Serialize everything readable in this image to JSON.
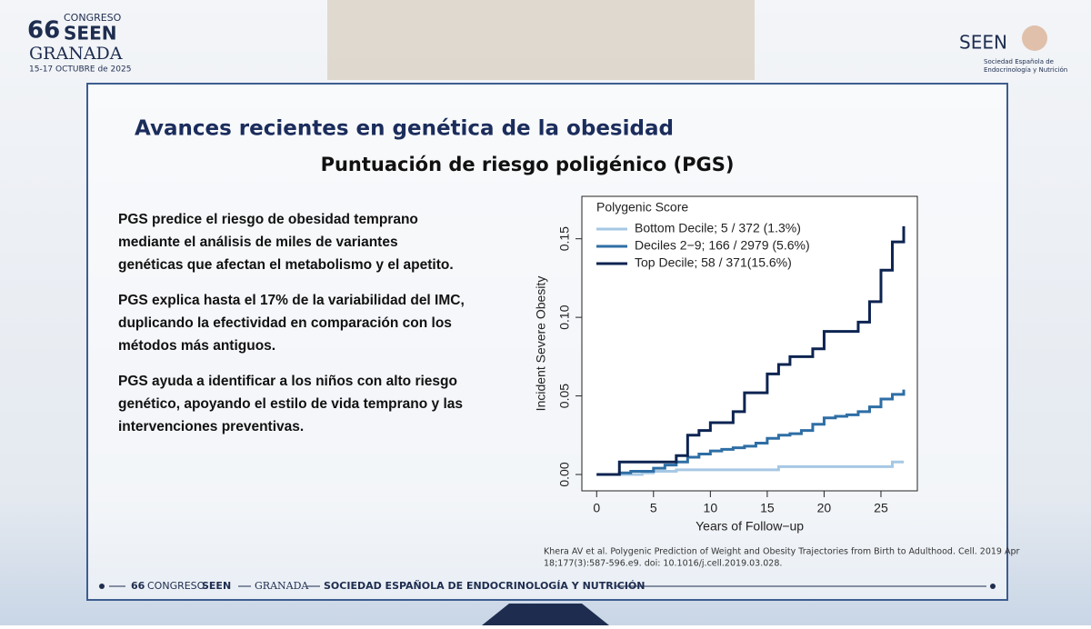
{
  "header": {
    "logo_number": "66",
    "logo_top": "CONGRESO",
    "logo_name": "SEEN",
    "logo_city": "GRANADA",
    "logo_dates": "15-17 OCTUBRE de 2025",
    "brand": "SEEN",
    "brand_sub_1": "Sociedad Española de",
    "brand_sub_2": "Endocrinología y Nutrición"
  },
  "slide": {
    "title": "Avances recientes en genética de la obesidad",
    "subtitle": "Puntuación de riesgo poligénico (PGS)",
    "bullets": [
      [
        "PGS predice el riesgo de obesidad temprano",
        "mediante el análisis de miles de variantes",
        "genéticas que afectan el metabolismo y el apetito."
      ],
      [
        "PGS explica hasta el 17% de la variabilidad del IMC,",
        "duplicando la efectividad en comparación con los",
        "métodos más antiguos."
      ],
      [
        "PGS ayuda a identificar a los niños con alto riesgo",
        "genético, apoyando el estilo de vida temprano y las",
        "intervenciones preventivas."
      ]
    ],
    "citation": [
      "Khera AV et al. Polygenic Prediction of Weight and Obesity Trajectories from Birth to Adulthood. Cell. 2019 Apr",
      "18;177(3):587-596.e9. doi: 10.1016/j.cell.2019.03.028."
    ]
  },
  "footer": {
    "number": "66",
    "congress": "CONGRESO",
    "name": "SEEN",
    "city": "GRANADA",
    "society": "SOCIEDAD ESPAÑOLA DE ENDOCRINOLOGÍA Y NUTRICIÓN"
  },
  "chart_data": {
    "type": "step",
    "legend_title": "Polygenic Score",
    "legend": "top-left",
    "x_label": "Years of Follow−up",
    "y_label": "Incident Severe Obesity",
    "x": [
      0,
      1,
      2,
      3,
      4,
      5,
      6,
      7,
      8,
      9,
      10,
      11,
      12,
      13,
      14,
      15,
      16,
      17,
      18,
      19,
      20,
      21,
      22,
      23,
      24,
      25,
      26,
      27
    ],
    "series": [
      {
        "name": "Bottom Decile; 5 / 372 (1.3%)",
        "color": "#a6c8e4",
        "values": [
          0,
          0,
          0,
          0,
          0.001,
          0.002,
          0.002,
          0.003,
          0.003,
          0.003,
          0.003,
          0.003,
          0.003,
          0.003,
          0.003,
          0.003,
          0.005,
          0.005,
          0.005,
          0.005,
          0.005,
          0.005,
          0.005,
          0.005,
          0.005,
          0.005,
          0.008,
          0.008
        ]
      },
      {
        "name": "Deciles 2−9; 166 / 2979 (5.6%)",
        "color": "#2e6ea5",
        "values": [
          0,
          0,
          0.001,
          0.002,
          0.002,
          0.004,
          0.006,
          0.008,
          0.011,
          0.013,
          0.015,
          0.016,
          0.017,
          0.018,
          0.02,
          0.023,
          0.025,
          0.026,
          0.028,
          0.032,
          0.036,
          0.037,
          0.038,
          0.04,
          0.043,
          0.048,
          0.051,
          0.054
        ]
      },
      {
        "name": "Top Decile; 58 / 371(15.6%)",
        "color": "#0d2451",
        "values": [
          0,
          0,
          0.008,
          0.008,
          0.008,
          0.008,
          0.008,
          0.012,
          0.025,
          0.028,
          0.033,
          0.033,
          0.04,
          0.052,
          0.052,
          0.064,
          0.07,
          0.075,
          0.075,
          0.08,
          0.091,
          0.091,
          0.091,
          0.097,
          0.11,
          0.13,
          0.148,
          0.158
        ]
      }
    ],
    "xlim": [
      -1.3,
      28.2
    ],
    "xticks": [
      0,
      5,
      10,
      15,
      20,
      25
    ],
    "ylim": [
      -0.0104,
      0.177
    ],
    "yticks": [
      {
        "value": 0,
        "label": "0.00"
      },
      0.05,
      {
        "value": 0.1,
        "label": "0.10"
      },
      0.15
    ]
  }
}
